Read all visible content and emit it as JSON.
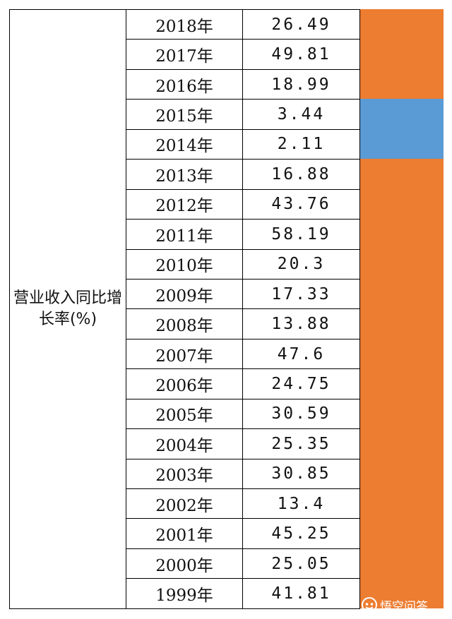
{
  "label": "营业收入同比增长率(%)",
  "rows": [
    {
      "year": "2018年",
      "value": "26.49"
    },
    {
      "year": "2017年",
      "value": "49.81"
    },
    {
      "year": "2016年",
      "value": "18.99"
    },
    {
      "year": "2015年",
      "value": "3.44"
    },
    {
      "year": "2014年",
      "value": "2.11"
    },
    {
      "year": "2013年",
      "value": "16.88"
    },
    {
      "year": "2012年",
      "value": "43.76"
    },
    {
      "year": "2011年",
      "value": "58.19"
    },
    {
      "year": "2010年",
      "value": "20.3"
    },
    {
      "year": "2009年",
      "value": "17.33"
    },
    {
      "year": "2008年",
      "value": "13.88"
    },
    {
      "year": "2007年",
      "value": "47.6"
    },
    {
      "year": "2006年",
      "value": "24.75"
    },
    {
      "year": "2005年",
      "value": "30.59"
    },
    {
      "year": "2004年",
      "value": "25.35"
    },
    {
      "year": "2003年",
      "value": "30.85"
    },
    {
      "year": "2002年",
      "value": "13.4"
    },
    {
      "year": "2001年",
      "value": "45.25"
    },
    {
      "year": "2000年",
      "value": "25.05"
    },
    {
      "year": "1999年",
      "value": "41.81"
    }
  ],
  "highlight": {
    "default_color": "#ED7D31",
    "blue_color": "#5B9BD5",
    "blue_rows": [
      "2015年",
      "2014年"
    ]
  },
  "watermark": {
    "text": "悟空问答",
    "icon": "wukong-logo-icon"
  }
}
